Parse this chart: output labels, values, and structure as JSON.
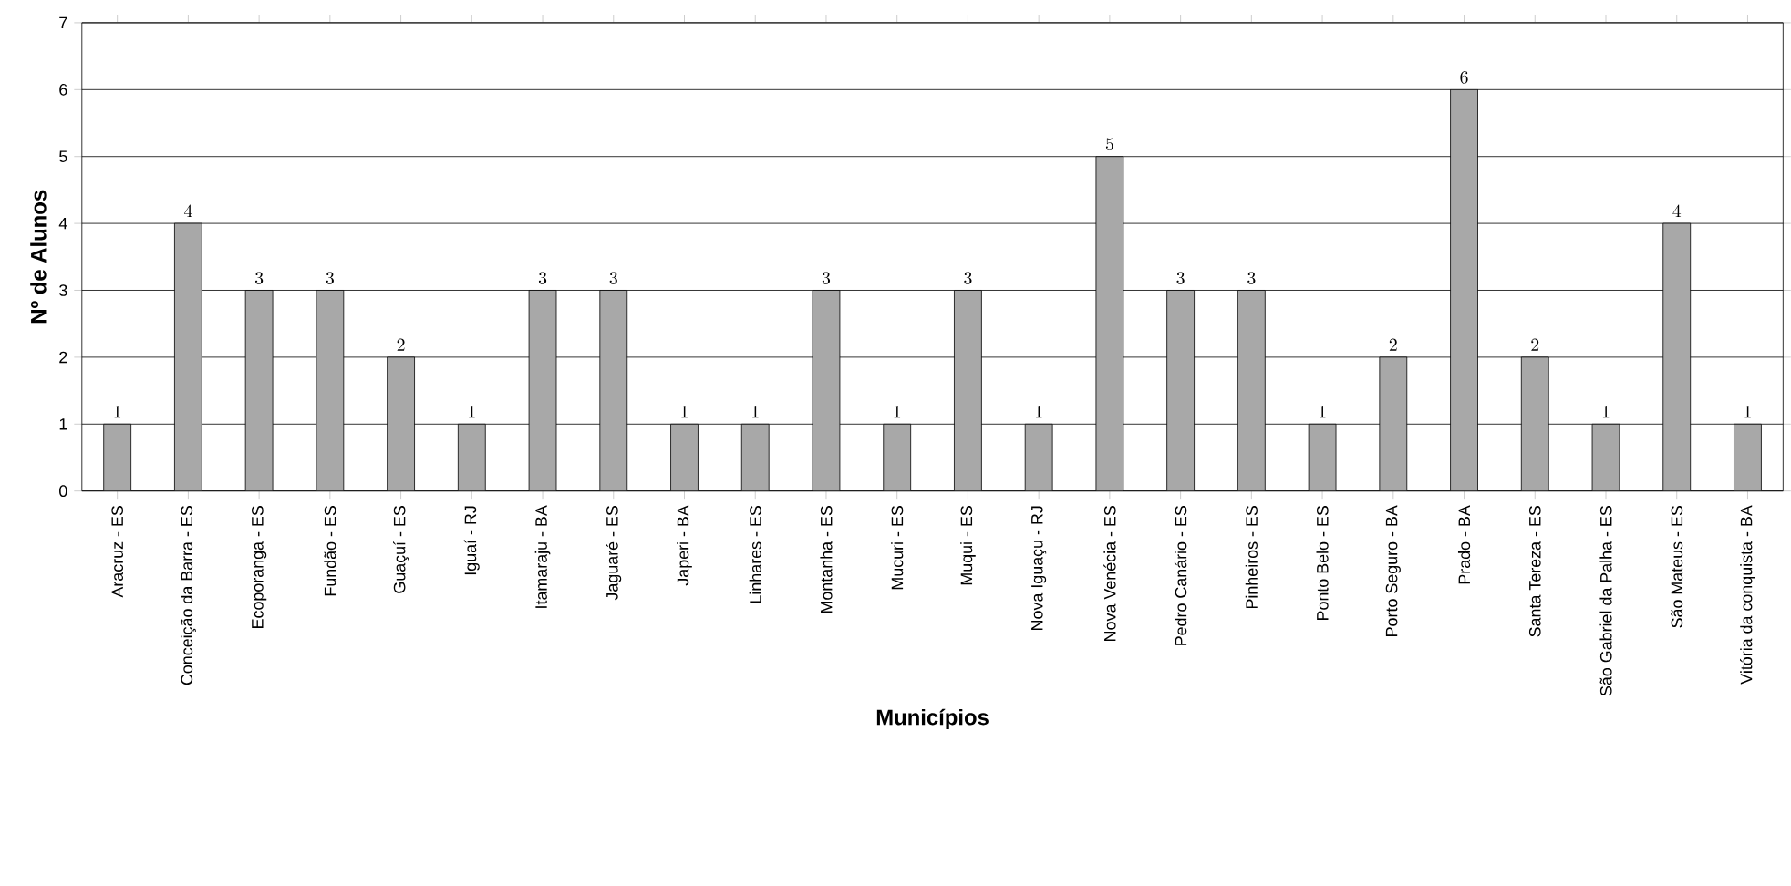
{
  "chart_data": {
    "type": "bar",
    "xlabel": "Municípios",
    "ylabel": "Nº de Alunos",
    "categories": [
      "Aracruz - ES",
      "Conceição da Barra - ES",
      "Ecoporanga - ES",
      "Fundão - ES",
      "Guaçuí - ES",
      "Iguaí - RJ",
      "Itamaraju - BA",
      "Jaguaré - ES",
      "Japeri - BA",
      "Linhares - ES",
      "Montanha - ES",
      "Mucuri - ES",
      "Muqui - ES",
      "Nova Iguaçu - RJ",
      "Nova Venécia - ES",
      "Pedro Canário - ES",
      "Pinheiros - ES",
      "Ponto Belo - ES",
      "Porto Seguro - BA",
      "Prado - BA",
      "Santa Tereza - ES",
      "São Gabriel da Palha - ES",
      "São Mateus - ES",
      "Vitória da conquista - BA"
    ],
    "values": [
      1,
      4,
      3,
      3,
      2,
      1,
      3,
      3,
      1,
      1,
      3,
      1,
      3,
      1,
      5,
      3,
      3,
      1,
      2,
      6,
      2,
      1,
      4,
      1
    ],
    "color": "#a8a8a8",
    "ylim": [
      0,
      7
    ],
    "yticks": [
      0,
      1,
      2,
      3,
      4,
      5,
      6,
      7
    ],
    "grid": "y",
    "data_labels": true
  }
}
